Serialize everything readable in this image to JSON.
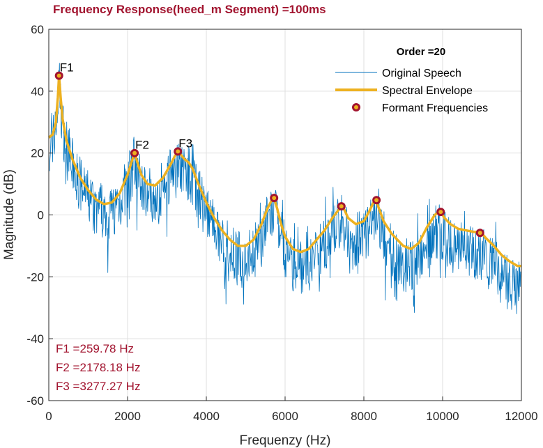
{
  "chart_data": {
    "type": "line",
    "title": "Frequency Response(heed_m Segment) =100ms",
    "xlabel": "Frequenzy (Hz)",
    "ylabel": "Magnitude (dB)",
    "xlim": [
      0,
      12000
    ],
    "ylim": [
      -60,
      60
    ],
    "x_ticks": [
      "0",
      "2000",
      "4000",
      "6000",
      "8000",
      "10000",
      "12000"
    ],
    "y_ticks": [
      "60",
      "40",
      "20",
      "0",
      "-20",
      "-40",
      "-60"
    ],
    "grid": true,
    "legend": {
      "placement": "top-right",
      "title": "Order =20",
      "entries": [
        "Original Speech",
        "Spectral Envelope",
        "Formant Frequencies"
      ]
    },
    "series": [
      {
        "name": "Spectral Envelope",
        "x": [
          0,
          100,
          180,
          230,
          260,
          300,
          350,
          450,
          600,
          800,
          1000,
          1200,
          1400,
          1600,
          1800,
          2000,
          2100,
          2178,
          2250,
          2350,
          2500,
          2700,
          2900,
          3100,
          3200,
          3277,
          3350,
          3450,
          3550,
          3650,
          3800,
          4000,
          4200,
          4400,
          4600,
          4800,
          5000,
          5200,
          5400,
          5550,
          5650,
          5720,
          5800,
          5900,
          6000,
          6200,
          6400,
          6600,
          6800,
          7000,
          7200,
          7350,
          7430,
          7500,
          7600,
          7800,
          8000,
          8150,
          8270,
          8320,
          8400,
          8500,
          8700,
          9000,
          9200,
          9400,
          9600,
          9800,
          9900,
          9950,
          10050,
          10200,
          10400,
          10600,
          10800,
          10950,
          11000,
          11100,
          11300,
          11500,
          11700,
          11900,
          12000
        ],
        "y": [
          25,
          26,
          30,
          38,
          45,
          38,
          31,
          24,
          18,
          12,
          8,
          5,
          3.5,
          4,
          7,
          13,
          17,
          20,
          17,
          13,
          10,
          9.5,
          12,
          16.5,
          19,
          20.5,
          19.5,
          18,
          17,
          15,
          10,
          4,
          -1,
          -5,
          -8,
          -10,
          -10,
          -8,
          -3,
          2,
          4.5,
          5.5,
          2,
          -3,
          -7,
          -11,
          -12,
          -11,
          -8,
          -5,
          -1,
          1.5,
          2.8,
          1.8,
          -1,
          -3,
          -2,
          1.5,
          4.8,
          4.3,
          1.5,
          -2,
          -6,
          -10,
          -11,
          -9,
          -4,
          0,
          1,
          1,
          -1,
          -3,
          -4.5,
          -5,
          -5.5,
          -5.5,
          -6,
          -7.5,
          -10,
          -13,
          -15,
          -16.5,
          -16.5
        ]
      },
      {
        "name": "Formant Frequencies",
        "x": [
          259.78,
          2178.18,
          3277.27,
          5720,
          7430,
          8320,
          9950,
          10950
        ],
        "y": [
          45,
          20,
          20.5,
          5.5,
          2.8,
          4.8,
          1,
          -5.8
        ]
      }
    ],
    "peak_labels": [
      "F1",
      "F2",
      "F3"
    ],
    "annotations": [
      "F1 =259.78 Hz",
      "F2 =2178.18 Hz",
      "F3 =3277.27 Hz"
    ],
    "colors": {
      "title": "#A2142F",
      "speech": "#0072BD",
      "envelope": "#EDB120",
      "formant": "#A2142F",
      "annotation": "#A2142F",
      "grid": "#DFDFDF",
      "axis": "#262626"
    }
  }
}
